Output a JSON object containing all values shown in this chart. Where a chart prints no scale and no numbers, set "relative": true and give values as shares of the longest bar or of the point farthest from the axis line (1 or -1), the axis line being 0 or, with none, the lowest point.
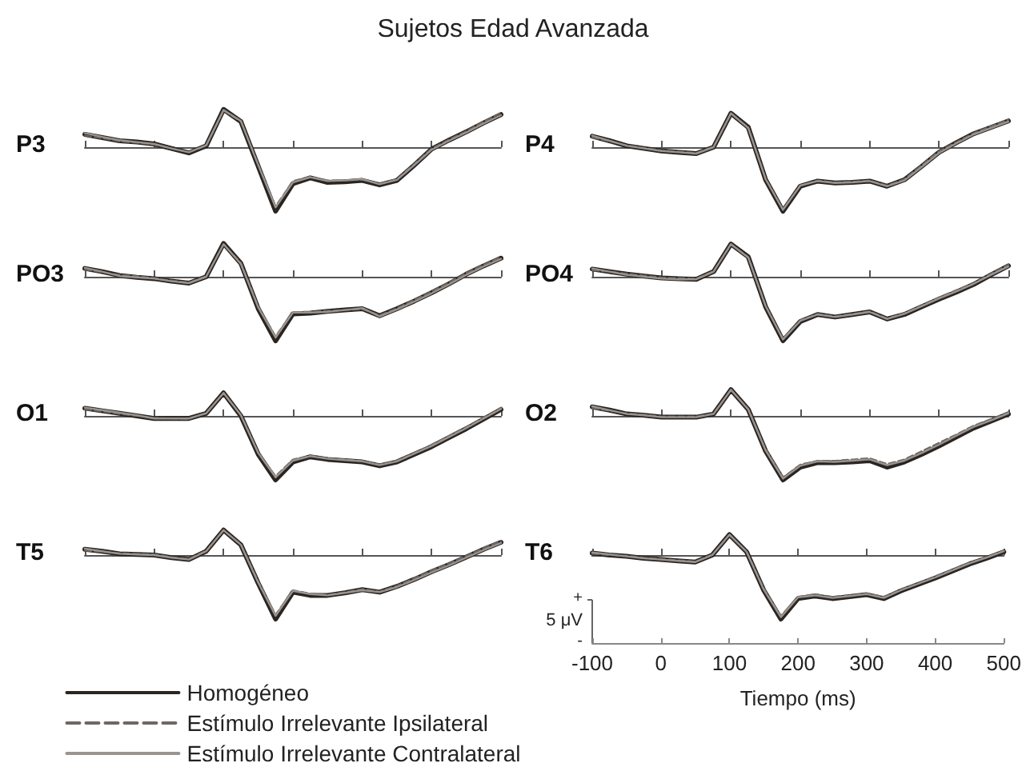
{
  "chart_data": [
    {
      "type": "line",
      "title": "Sujetos Edad Avanzada",
      "ylabel": "P3",
      "relative": true,
      "tick_labels": false,
      "categories": [
        null,
        null,
        null,
        null,
        null,
        null,
        null,
        null,
        null,
        null,
        null,
        null,
        null,
        null,
        null,
        null,
        null,
        null,
        null,
        null,
        null,
        null,
        null,
        null,
        null
      ],
      "series": [
        {
          "color": "#2b2522",
          "line_style": "solid",
          "values": [
            0.2,
            0.15,
            0.1,
            0.08,
            0.05,
            -0.02,
            -0.09,
            0.02,
            0.59,
            0.4,
            -0.3,
            -1,
            -0.57,
            -0.48,
            -0.55,
            -0.54,
            -0.52,
            -0.59,
            -0.52,
            -0.28,
            -0.03,
            0.11,
            0.24,
            0.38,
            0.51
          ]
        },
        {
          "color": "#6e6864",
          "line_style": "dashed",
          "values": [
            0.18,
            0.14,
            0.09,
            0.07,
            0.04,
            -0.02,
            -0.08,
            0.02,
            0.57,
            0.4,
            -0.27,
            -0.92,
            -0.53,
            -0.46,
            -0.52,
            -0.52,
            -0.51,
            -0.57,
            -0.5,
            -0.26,
            -0.02,
            0.12,
            0.25,
            0.4,
            0.54
          ]
        },
        {
          "color": "#9a9490",
          "line_style": "solid",
          "values": [
            0.22,
            0.16,
            0.11,
            0.08,
            0.05,
            -0.02,
            -0.08,
            0.03,
            0.58,
            0.41,
            -0.28,
            -0.94,
            -0.55,
            -0.47,
            -0.53,
            -0.52,
            -0.5,
            -0.58,
            -0.51,
            -0.28,
            -0.04,
            0.1,
            0.23,
            0.37,
            0.5
          ]
        }
      ]
    },
    {
      "type": "line",
      "ylabel": "P4",
      "relative": true,
      "tick_labels": false,
      "categories": [
        null,
        null,
        null,
        null,
        null,
        null,
        null,
        null,
        null,
        null,
        null,
        null,
        null,
        null,
        null,
        null,
        null,
        null,
        null,
        null,
        null,
        null,
        null,
        null,
        null
      ],
      "series": [
        {
          "color": "#2b2522",
          "line_style": "solid",
          "values": [
            0.17,
            0.1,
            0.02,
            -0.02,
            -0.06,
            -0.08,
            -0.1,
            0,
            0.53,
            0.31,
            -0.51,
            -1,
            -0.61,
            -0.53,
            -0.56,
            -0.55,
            -0.53,
            -0.61,
            -0.51,
            -0.3,
            -0.08,
            0.07,
            0.21,
            0.31,
            0.41
          ]
        },
        {
          "color": "#6e6864",
          "line_style": "dashed",
          "values": [
            0.15,
            0.09,
            0.03,
            -0.01,
            -0.05,
            -0.07,
            -0.09,
            0.01,
            0.52,
            0.31,
            -0.49,
            -0.97,
            -0.6,
            -0.52,
            -0.55,
            -0.54,
            -0.52,
            -0.6,
            -0.5,
            -0.28,
            -0.06,
            0.08,
            0.22,
            0.33,
            0.43
          ]
        },
        {
          "color": "#9a9490",
          "line_style": "solid",
          "values": [
            0.18,
            0.1,
            0.02,
            -0.02,
            -0.06,
            -0.08,
            -0.1,
            0,
            0.53,
            0.3,
            -0.5,
            -0.98,
            -0.6,
            -0.53,
            -0.56,
            -0.55,
            -0.53,
            -0.61,
            -0.52,
            -0.31,
            -0.09,
            0.06,
            0.2,
            0.3,
            0.4
          ]
        }
      ]
    },
    {
      "type": "line",
      "ylabel": "PO3",
      "relative": true,
      "tick_labels": false,
      "categories": [
        null,
        null,
        null,
        null,
        null,
        null,
        null,
        null,
        null,
        null,
        null,
        null,
        null,
        null,
        null,
        null,
        null,
        null,
        null,
        null,
        null,
        null,
        null,
        null,
        null
      ],
      "series": [
        {
          "color": "#2b2522",
          "line_style": "solid",
          "values": [
            0.13,
            0.08,
            0.02,
            -0.01,
            -0.03,
            -0.07,
            -0.1,
            0,
            0.52,
            0.21,
            -0.5,
            -1,
            -0.58,
            -0.57,
            -0.54,
            -0.52,
            -0.5,
            -0.61,
            -0.5,
            -0.38,
            -0.25,
            -0.11,
            0.04,
            0.17,
            0.29
          ]
        },
        {
          "color": "#6e6864",
          "line_style": "dashed",
          "values": [
            0.11,
            0.07,
            0.03,
            0.01,
            -0.02,
            -0.06,
            -0.09,
            0.01,
            0.5,
            0.22,
            -0.46,
            -0.93,
            -0.55,
            -0.55,
            -0.53,
            -0.52,
            -0.51,
            -0.6,
            -0.49,
            -0.36,
            -0.23,
            -0.09,
            0.06,
            0.19,
            0.31
          ]
        },
        {
          "color": "#9a9490",
          "line_style": "solid",
          "values": [
            0.14,
            0.08,
            0.01,
            -0.01,
            -0.03,
            -0.07,
            -0.1,
            0,
            0.51,
            0.2,
            -0.48,
            -0.95,
            -0.56,
            -0.56,
            -0.55,
            -0.52,
            -0.49,
            -0.62,
            -0.51,
            -0.39,
            -0.26,
            -0.12,
            0.03,
            0.16,
            0.28
          ]
        }
      ]
    },
    {
      "type": "line",
      "ylabel": "PO4",
      "relative": true,
      "tick_labels": false,
      "categories": [
        null,
        null,
        null,
        null,
        null,
        null,
        null,
        null,
        null,
        null,
        null,
        null,
        null,
        null,
        null,
        null,
        null,
        null,
        null,
        null,
        null,
        null,
        null,
        null,
        null
      ],
      "series": [
        {
          "color": "#2b2522",
          "line_style": "solid",
          "values": [
            0.12,
            0.08,
            0.04,
            0.01,
            -0.02,
            -0.03,
            -0.04,
            0.08,
            0.51,
            0.31,
            -0.47,
            -1,
            -0.7,
            -0.59,
            -0.63,
            -0.59,
            -0.55,
            -0.66,
            -0.59,
            -0.47,
            -0.35,
            -0.24,
            -0.12,
            0.03,
            0.17
          ]
        },
        {
          "color": "#6e6864",
          "line_style": "dashed",
          "values": [
            0.1,
            0.08,
            0.05,
            0.02,
            -0.01,
            -0.02,
            -0.03,
            0.09,
            0.5,
            0.31,
            -0.45,
            -0.97,
            -0.68,
            -0.58,
            -0.62,
            -0.58,
            -0.54,
            -0.65,
            -0.57,
            -0.45,
            -0.32,
            -0.21,
            -0.1,
            0.05,
            0.19
          ]
        },
        {
          "color": "#9a9490",
          "line_style": "solid",
          "values": [
            0.13,
            0.08,
            0.03,
            0,
            -0.03,
            -0.04,
            -0.04,
            0.08,
            0.51,
            0.3,
            -0.46,
            -0.98,
            -0.69,
            -0.59,
            -0.63,
            -0.59,
            -0.55,
            -0.66,
            -0.58,
            -0.46,
            -0.34,
            -0.23,
            -0.11,
            0.03,
            0.16
          ]
        }
      ]
    },
    {
      "type": "line",
      "ylabel": "O1",
      "relative": true,
      "tick_labels": false,
      "categories": [
        null,
        null,
        null,
        null,
        null,
        null,
        null,
        null,
        null,
        null,
        null,
        null,
        null,
        null,
        null,
        null,
        null,
        null,
        null,
        null,
        null,
        null,
        null,
        null,
        null
      ],
      "series": [
        {
          "color": "#2b2522",
          "line_style": "solid",
          "values": [
            0.12,
            0.08,
            0.04,
            0,
            -0.04,
            -0.04,
            -0.04,
            0.04,
            0.36,
            0,
            -0.6,
            -1,
            -0.72,
            -0.64,
            -0.68,
            -0.7,
            -0.72,
            -0.78,
            -0.72,
            -0.6,
            -0.48,
            -0.34,
            -0.2,
            -0.05,
            0.1
          ]
        },
        {
          "color": "#6e6864",
          "line_style": "dashed",
          "values": [
            0.1,
            0.07,
            0.03,
            0,
            -0.03,
            -0.04,
            -0.05,
            0.05,
            0.35,
            0.02,
            -0.57,
            -0.94,
            -0.68,
            -0.62,
            -0.66,
            -0.68,
            -0.7,
            -0.76,
            -0.7,
            -0.58,
            -0.45,
            -0.31,
            -0.17,
            -0.02,
            0.13
          ]
        },
        {
          "color": "#9a9490",
          "line_style": "solid",
          "values": [
            0.13,
            0.09,
            0.05,
            0.01,
            -0.04,
            -0.04,
            -0.04,
            0.04,
            0.36,
            0.01,
            -0.58,
            -0.96,
            -0.7,
            -0.63,
            -0.67,
            -0.69,
            -0.71,
            -0.77,
            -0.71,
            -0.59,
            -0.47,
            -0.33,
            -0.19,
            -0.04,
            0.11
          ]
        }
      ]
    },
    {
      "type": "line",
      "ylabel": "O2",
      "relative": true,
      "tick_labels": false,
      "categories": [
        null,
        null,
        null,
        null,
        null,
        null,
        null,
        null,
        null,
        null,
        null,
        null,
        null,
        null,
        null,
        null,
        null,
        null,
        null,
        null,
        null,
        null,
        null,
        null,
        null
      ],
      "series": [
        {
          "color": "#2b2522",
          "line_style": "solid",
          "values": [
            0.14,
            0.09,
            0.03,
            0.01,
            -0.02,
            -0.02,
            -0.02,
            0.03,
            0.41,
            0.1,
            -0.55,
            -1,
            -0.8,
            -0.73,
            -0.73,
            -0.72,
            -0.7,
            -0.8,
            -0.72,
            -0.6,
            -0.47,
            -0.33,
            -0.19,
            -0.08,
            0.03
          ]
        },
        {
          "color": "#6e6864",
          "line_style": "dashed",
          "values": [
            0.12,
            0.08,
            0.04,
            0.02,
            -0.01,
            -0.01,
            -0.01,
            0.04,
            0.4,
            0.11,
            -0.52,
            -0.96,
            -0.76,
            -0.7,
            -0.7,
            -0.68,
            -0.66,
            -0.75,
            -0.68,
            -0.55,
            -0.42,
            -0.29,
            -0.15,
            -0.05,
            0.06
          ]
        },
        {
          "color": "#9a9490",
          "line_style": "solid",
          "values": [
            0.15,
            0.09,
            0.03,
            0.01,
            -0.02,
            -0.02,
            -0.02,
            0.03,
            0.41,
            0.1,
            -0.54,
            -0.98,
            -0.78,
            -0.71,
            -0.72,
            -0.7,
            -0.68,
            -0.77,
            -0.7,
            -0.58,
            -0.45,
            -0.31,
            -0.17,
            -0.07,
            0.04
          ]
        }
      ]
    },
    {
      "type": "line",
      "ylabel": "T5",
      "relative": true,
      "tick_labels": false,
      "legend": "bottom",
      "categories": [
        null,
        null,
        null,
        null,
        null,
        null,
        null,
        null,
        null,
        null,
        null,
        null,
        null,
        null,
        null,
        null,
        null,
        null,
        null,
        null,
        null,
        null,
        null,
        null,
        null
      ],
      "series": [
        {
          "name": "Homogéneo",
          "color": "#2b2522",
          "line_style": "solid",
          "values": [
            0.09,
            0.06,
            0.02,
            0.01,
            0,
            -0.04,
            -0.07,
            0.06,
            0.39,
            0.16,
            -0.44,
            -1,
            -0.58,
            -0.63,
            -0.63,
            -0.59,
            -0.54,
            -0.58,
            -0.49,
            -0.38,
            -0.26,
            -0.15,
            -0.03,
            0.09,
            0.2
          ]
        },
        {
          "name": "Estímulo Irrelevante Ipsilateral",
          "color": "#6e6864",
          "line_style": "dashed",
          "values": [
            0.07,
            0.05,
            0.03,
            0.02,
            0.01,
            -0.03,
            -0.06,
            0.07,
            0.38,
            0.17,
            -0.41,
            -0.93,
            -0.55,
            -0.6,
            -0.62,
            -0.58,
            -0.53,
            -0.57,
            -0.48,
            -0.36,
            -0.24,
            -0.13,
            -0.01,
            0.11,
            0.22
          ]
        },
        {
          "name": "Estímulo Irrelevante Contralateral",
          "color": "#9a9490",
          "line_style": "solid",
          "values": [
            0.1,
            0.06,
            0.02,
            0.01,
            0,
            -0.04,
            -0.07,
            0.06,
            0.39,
            0.16,
            -0.43,
            -0.95,
            -0.56,
            -0.61,
            -0.63,
            -0.59,
            -0.55,
            -0.58,
            -0.5,
            -0.39,
            -0.27,
            -0.16,
            -0.04,
            0.08,
            0.19
          ]
        }
      ]
    },
    {
      "type": "line",
      "ylabel": "T6",
      "relative": true,
      "tick_labels": "x",
      "xlabel": "Tiempo (ms)",
      "annotations": [
        "+",
        "5 μV",
        "-"
      ],
      "xlim": [
        -100,
        500
      ],
      "xticks": [
        -100,
        0,
        100,
        200,
        300,
        400,
        500
      ],
      "x": [
        -100,
        -75,
        -50,
        -25,
        0,
        25,
        50,
        75,
        100,
        125,
        150,
        175,
        200,
        225,
        250,
        275,
        300,
        325,
        350,
        375,
        400,
        425,
        450,
        475,
        500
      ],
      "series": [
        {
          "color": "#2b2522",
          "line_style": "solid",
          "values": [
            0.03,
            0,
            -0.02,
            -0.05,
            -0.07,
            -0.09,
            -0.11,
            0,
            0.32,
            0.05,
            -0.55,
            -1,
            -0.68,
            -0.64,
            -0.68,
            -0.65,
            -0.62,
            -0.68,
            -0.56,
            -0.46,
            -0.36,
            -0.25,
            -0.14,
            -0.05,
            0.05
          ]
        },
        {
          "color": "#6e6864",
          "line_style": "dashed",
          "values": [
            0.02,
            0,
            -0.01,
            -0.04,
            -0.06,
            -0.08,
            -0.1,
            0.01,
            0.31,
            0.06,
            -0.52,
            -0.95,
            -0.65,
            -0.61,
            -0.65,
            -0.63,
            -0.6,
            -0.65,
            -0.54,
            -0.44,
            -0.33,
            -0.23,
            -0.12,
            -0.03,
            0.07
          ]
        },
        {
          "color": "#9a9490",
          "line_style": "solid",
          "values": [
            0.04,
            0.01,
            -0.02,
            -0.05,
            -0.07,
            -0.09,
            -0.11,
            0,
            0.32,
            0.05,
            -0.54,
            -0.97,
            -0.66,
            -0.63,
            -0.67,
            -0.64,
            -0.61,
            -0.67,
            -0.55,
            -0.45,
            -0.35,
            -0.24,
            -0.13,
            -0.04,
            0.06
          ]
        }
      ]
    }
  ]
}
